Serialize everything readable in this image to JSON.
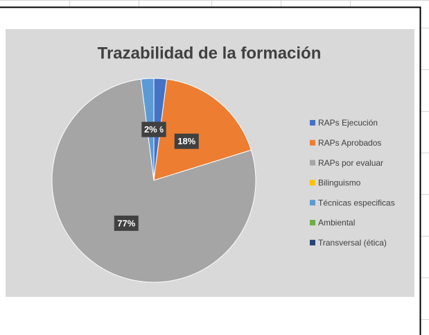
{
  "chart_data": {
    "type": "pie",
    "title": "Trazabilidad de la formación",
    "categories": [
      "RAPs Ejecución",
      "RAPs Aprobados",
      "RAPs por evaluar",
      "Bilinguismo",
      "Técnicas especificas",
      "Ambiental",
      "Transversal (ética)"
    ],
    "values": [
      2,
      18,
      77,
      0,
      2,
      0,
      0
    ],
    "value_labels": [
      "2%",
      "18%",
      "77%",
      null,
      "2%",
      null,
      null
    ],
    "colors": [
      "#4472c4",
      "#ed7d31",
      "#a5a5a5",
      "#ffc000",
      "#5b9bd5",
      "#70ad47",
      "#264478"
    ],
    "legend": "right"
  }
}
